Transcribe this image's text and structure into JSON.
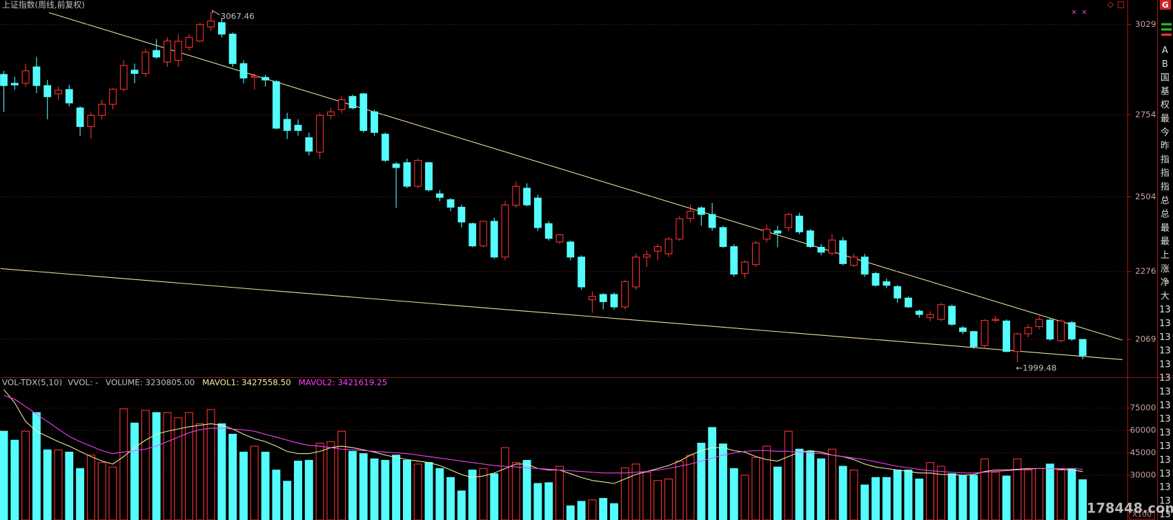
{
  "chart_data": [
    {
      "type": "candlestick",
      "title": "上证指数(周线,前复权)",
      "ylim": [
        1955,
        3104
      ],
      "yticks": [
        2069,
        2276,
        2504,
        2754,
        3029
      ],
      "grid": true,
      "up_color": "#ff3232",
      "down_color": "#54fcfc",
      "high_label": "3067.46",
      "low_label": "←1999.48",
      "open": [
        2877,
        2850,
        2850,
        2900,
        2843,
        2818,
        2831,
        2775,
        2718,
        2752,
        2786,
        2832,
        2890,
        2880,
        2950,
        2915,
        2920,
        2960,
        2979,
        3022,
        3035,
        3000,
        2910,
        2868,
        2868,
        2855,
        2740,
        2722,
        2684,
        2640,
        2752,
        2770,
        2810,
        2818,
        2763,
        2695,
        2604,
        2608,
        2536,
        2608,
        2513,
        2495,
        2472,
        2422,
        2354,
        2429,
        2320,
        2478,
        2530,
        2500,
        2422,
        2366,
        2366,
        2320,
        2190,
        2206,
        2206,
        2168,
        2229,
        2320,
        2338,
        2330,
        2375,
        2438,
        2470,
        2450,
        2410,
        2352,
        2270,
        2297,
        2375,
        2400,
        2410,
        2445,
        2400,
        2350,
        2332,
        2370,
        2295,
        2320,
        2270,
        2245,
        2230,
        2195,
        2155,
        2135,
        2130,
        2170,
        2104,
        2093,
        2050,
        2127,
        2125,
        2032,
        2086,
        2108,
        2128,
        2065,
        2120,
        2069
      ],
      "high": [
        2888,
        2870,
        2910,
        2930,
        2860,
        2840,
        2845,
        2780,
        2760,
        2800,
        2835,
        2920,
        2910,
        2955,
        2985,
        2990,
        3000,
        3000,
        3035,
        3067.46,
        3050,
        3005,
        2920,
        2880,
        2875,
        2860,
        2760,
        2740,
        2700,
        2760,
        2775,
        2810,
        2815,
        2820,
        2770,
        2700,
        2610,
        2620,
        2620,
        2610,
        2525,
        2500,
        2480,
        2425,
        2430,
        2440,
        2490,
        2550,
        2545,
        2510,
        2430,
        2390,
        2370,
        2325,
        2215,
        2210,
        2212,
        2250,
        2330,
        2340,
        2360,
        2380,
        2445,
        2480,
        2475,
        2485,
        2415,
        2360,
        2310,
        2370,
        2420,
        2415,
        2455,
        2455,
        2405,
        2360,
        2390,
        2380,
        2330,
        2330,
        2275,
        2255,
        2235,
        2200,
        2160,
        2155,
        2180,
        2175,
        2110,
        2095,
        2130,
        2140,
        2130,
        2090,
        2115,
        2140,
        2135,
        2130,
        2125,
        2070
      ],
      "low": [
        2763,
        2830,
        2840,
        2820,
        2740,
        2800,
        2780,
        2690,
        2680,
        2740,
        2770,
        2825,
        2850,
        2870,
        2925,
        2900,
        2900,
        2950,
        2975,
        3010,
        2990,
        2900,
        2850,
        2830,
        2840,
        2710,
        2680,
        2690,
        2630,
        2620,
        2740,
        2760,
        2770,
        2700,
        2690,
        2610,
        2470,
        2530,
        2530,
        2520,
        2490,
        2460,
        2410,
        2350,
        2350,
        2315,
        2310,
        2470,
        2475,
        2400,
        2370,
        2360,
        2310,
        2220,
        2150,
        2160,
        2160,
        2160,
        2220,
        2290,
        2310,
        2320,
        2370,
        2425,
        2415,
        2400,
        2348,
        2260,
        2255,
        2290,
        2365,
        2350,
        2400,
        2390,
        2348,
        2325,
        2325,
        2295,
        2290,
        2260,
        2230,
        2225,
        2180,
        2165,
        2135,
        2125,
        2125,
        2110,
        2085,
        2040,
        2040,
        2120,
        2030,
        1999.48,
        2075,
        2100,
        2065,
        2060,
        2065,
        2008
      ],
      "close": [
        2843,
        2845,
        2888,
        2843,
        2809,
        2829,
        2790,
        2718,
        2752,
        2786,
        2832,
        2904,
        2880,
        2945,
        2930,
        2979,
        2978,
        2990,
        3029,
        3040,
        3000,
        2910,
        2866,
        2872,
        2860,
        2713,
        2706,
        2706,
        2643,
        2752,
        2763,
        2800,
        2775,
        2706,
        2700,
        2615,
        2593,
        2536,
        2615,
        2525,
        2502,
        2472,
        2427,
        2354,
        2429,
        2320,
        2479,
        2536,
        2479,
        2410,
        2377,
        2388,
        2320,
        2229,
        2200,
        2184,
        2168,
        2245,
        2320,
        2327,
        2352,
        2375,
        2437,
        2460,
        2450,
        2410,
        2352,
        2268,
        2305,
        2363,
        2405,
        2393,
        2450,
        2397,
        2352,
        2335,
        2372,
        2300,
        2320,
        2268,
        2234,
        2234,
        2195,
        2168,
        2145,
        2145,
        2175,
        2115,
        2093,
        2047,
        2127,
        2130,
        2032,
        2086,
        2105,
        2130,
        2070,
        2125,
        2070,
        2020
      ]
    },
    {
      "type": "bar",
      "title": "VOL-TDX(5,10)",
      "readouts": [
        {
          "text": "VVOL: -",
          "color": "#c0c0c0"
        },
        {
          "text": "VOLUME: 3230805.00",
          "color": "#c0c0c0"
        },
        {
          "text": "MAVOL1: 3427558.50",
          "color": "#f0f0a0"
        },
        {
          "text": "MAVOL2: 3421619.25",
          "color": "#ff40ff"
        }
      ],
      "ylim": [
        0,
        95000
      ],
      "yticks": [
        30000,
        45000,
        60000,
        75000
      ],
      "grid": true,
      "unit_label": "X100",
      "series": [
        {
          "type": "bar",
          "values": [
            59500,
            53500,
            59500,
            72000,
            47000,
            47000,
            45500,
            34500,
            43500,
            38500,
            35500,
            74500,
            65000,
            73500,
            72000,
            72000,
            68500,
            72000,
            64500,
            74000,
            64500,
            57500,
            45500,
            49500,
            45500,
            33500,
            26000,
            39500,
            40000,
            51500,
            52500,
            59500,
            46000,
            44500,
            41000,
            40000,
            43500,
            40000,
            37500,
            38500,
            34500,
            28500,
            19500,
            33500,
            34500,
            31000,
            48500,
            38500,
            40000,
            24500,
            25000,
            36000,
            9500,
            12500,
            13500,
            14500,
            11000,
            35000,
            37500,
            32000,
            26500,
            27500,
            39500,
            43500,
            51500,
            62000,
            51000,
            34500,
            30000,
            42000,
            49500,
            35500,
            59500,
            47500,
            46000,
            41000,
            47500,
            36000,
            33500,
            23500,
            28500,
            28500,
            33500,
            33500,
            27500,
            38500,
            36000,
            31000,
            30000,
            30000,
            41000,
            32000,
            29500,
            41000,
            33500,
            34500,
            37500,
            33500,
            34500,
            27000
          ]
        },
        {
          "type": "line",
          "color": "#f0f0a0",
          "values": [
            87500,
            78500,
            66000,
            59500,
            56000,
            52500,
            49500,
            46000,
            42500,
            39500,
            37500,
            42500,
            48500,
            53500,
            57500,
            59500,
            61000,
            62500,
            63500,
            64500,
            63500,
            61000,
            57500,
            54500,
            52500,
            49500,
            46000,
            44500,
            44500,
            46000,
            48500,
            49500,
            48500,
            47000,
            45500,
            43500,
            42000,
            40500,
            39500,
            38500,
            36500,
            33500,
            30500,
            28500,
            29500,
            31500,
            34500,
            37500,
            37500,
            34500,
            33500,
            33500,
            31000,
            28500,
            26500,
            25500,
            24500,
            27500,
            30500,
            32500,
            34500,
            36500,
            39500,
            43500,
            46500,
            48500,
            48500,
            46500,
            45500,
            42500,
            40500,
            39500,
            42500,
            45500,
            46500,
            45500,
            43500,
            42500,
            40500,
            37500,
            35500,
            34500,
            33500,
            32500,
            31500,
            31500,
            30500,
            30500,
            30000,
            30500,
            32500,
            33500,
            33500,
            34000,
            34500,
            34500,
            34500,
            34000,
            33500,
            32500
          ]
        },
        {
          "type": "line",
          "color": "#ff40ff",
          "values": [
            83500,
            81000,
            76000,
            71000,
            66000,
            61000,
            56000,
            52500,
            49500,
            46500,
            44500,
            45500,
            46500,
            47500,
            49500,
            52500,
            55500,
            58500,
            60500,
            61500,
            61500,
            61000,
            60500,
            59500,
            57500,
            55500,
            53500,
            51500,
            50000,
            49500,
            48500,
            47500,
            47000,
            46500,
            46000,
            45500,
            45000,
            44500,
            43500,
            42500,
            41500,
            40500,
            39500,
            38500,
            37500,
            36500,
            36000,
            35500,
            35000,
            34500,
            34000,
            33500,
            33000,
            32500,
            32000,
            31500,
            31500,
            31500,
            32000,
            32500,
            33500,
            34500,
            36000,
            37500,
            39500,
            41500,
            43500,
            45000,
            46000,
            46500,
            46500,
            46000,
            46000,
            45500,
            45000,
            44500,
            43500,
            42500,
            41500,
            40500,
            39000,
            37500,
            36000,
            35000,
            34000,
            33000,
            32500,
            32000,
            31500,
            31500,
            32000,
            32500,
            33000,
            33500,
            34000,
            34500,
            34500,
            34500,
            34500,
            34000
          ]
        }
      ]
    }
  ],
  "sidebar": {
    "items": [
      "A",
      "B",
      "国",
      "基",
      "权",
      "最",
      "今",
      "昨",
      "指",
      "指",
      "指",
      "总",
      "总",
      "最",
      "最",
      "上",
      "涨",
      "净",
      "大",
      "13",
      "13",
      "13",
      "13",
      "13",
      "13",
      "13",
      "13",
      "13",
      "13",
      "13",
      "13",
      "13",
      "13",
      "13",
      "13"
    ]
  },
  "toolbar": {
    "marks": [
      "×",
      "×"
    ],
    "icons": [
      "◇",
      "□"
    ],
    "badge": "G"
  },
  "watermark": "178448.com"
}
